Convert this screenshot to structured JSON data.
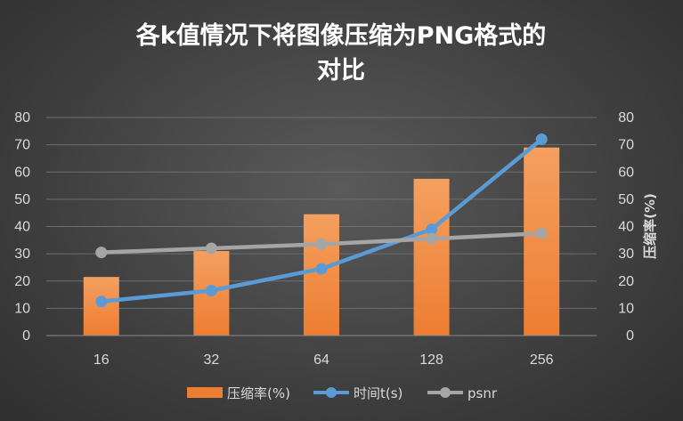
{
  "chart_data": {
    "type": "bar",
    "title_line1": "各k值情况下将图像压缩为PNG格式的",
    "title_line2": "对比",
    "categories": [
      "16",
      "32",
      "64",
      "128",
      "256"
    ],
    "ylim": [
      0,
      80
    ],
    "y_ticks": [
      "0",
      "10",
      "20",
      "30",
      "40",
      "50",
      "60",
      "70",
      "80"
    ],
    "y2lim": [
      0,
      80
    ],
    "y2_ticks": [
      "0",
      "10",
      "20",
      "30",
      "40",
      "50",
      "60",
      "70",
      "80"
    ],
    "y2label": "压缩率(%)",
    "grid": true,
    "legend_position": "bottom",
    "series": [
      {
        "name": "压缩率(%)",
        "kind": "bar",
        "axis": "secondary",
        "color": "#ed7d31",
        "values": [
          21.5,
          31,
          44.5,
          57.5,
          69
        ]
      },
      {
        "name": "时间t(s)",
        "kind": "line",
        "axis": "primary",
        "color": "#5b9bd5",
        "values": [
          12.5,
          16.5,
          24.5,
          39,
          72
        ]
      },
      {
        "name": "psnr",
        "kind": "line",
        "axis": "primary",
        "color": "#a5a5a5",
        "values": [
          30.5,
          32,
          33.5,
          35.5,
          37.5
        ]
      }
    ]
  }
}
